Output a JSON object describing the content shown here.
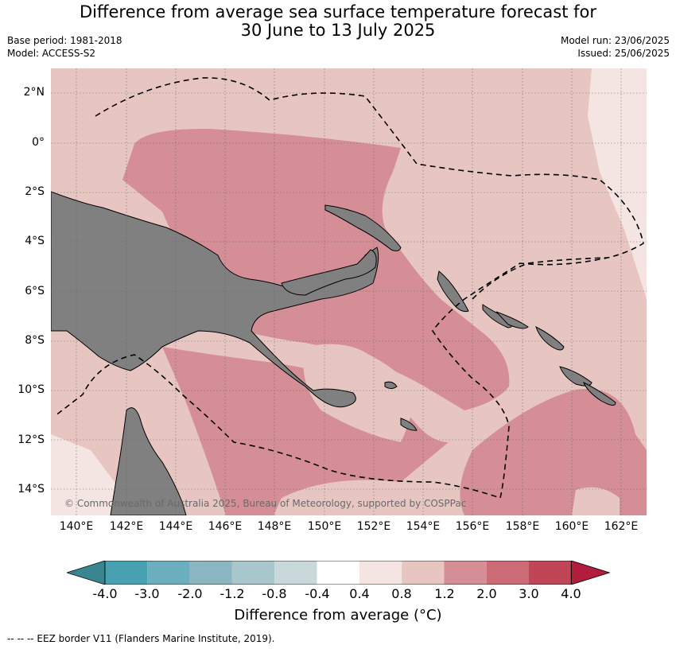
{
  "header": {
    "title_line1": "Difference from average sea surface temperature forecast for",
    "title_line2": "30 June to 13 July 2025",
    "base_period": "Base period: 1981-2018",
    "model": "Model: ACCESS-S2",
    "model_run": "Model run: 23/06/2025",
    "issued": "Issued: 25/06/2025"
  },
  "map": {
    "lat_labels": [
      "2°N",
      "0°",
      "2°S",
      "4°S",
      "6°S",
      "8°S",
      "10°S",
      "12°S",
      "14°S"
    ],
    "lon_labels": [
      "140°E",
      "142°E",
      "144°E",
      "146°E",
      "148°E",
      "150°E",
      "152°E",
      "154°E",
      "156°E",
      "158°E",
      "160°E",
      "162°E"
    ],
    "copyright": "© Commonwealth of Australia 2025, Bureau of Meteorology, supported by COSPPac",
    "land_color": "#808080",
    "dominant_anomaly_range": "0.8 to 1.2",
    "warm_core_range": "1.2 to 2.0"
  },
  "colorbar": {
    "ticks": [
      "-4.0",
      "-3.0",
      "-2.0",
      "-1.2",
      "-0.8",
      "-0.4",
      "0.4",
      "0.8",
      "1.2",
      "2.0",
      "3.0",
      "4.0"
    ],
    "colors": [
      "#47a1b1",
      "#6baebe",
      "#8ab5c1",
      "#a8c6cb",
      "#c8d8db",
      "#ffffff",
      "#f4e5e3",
      "#e7c6c2",
      "#d58e95",
      "#cc6a75",
      "#c04556"
    ],
    "under_color": "#3a8690",
    "over_color": "#b21c3d",
    "label": "Difference from average (°C)"
  },
  "footnote": "--  --  -- EEZ border V11 (Flanders Marine Institute, 2019)."
}
